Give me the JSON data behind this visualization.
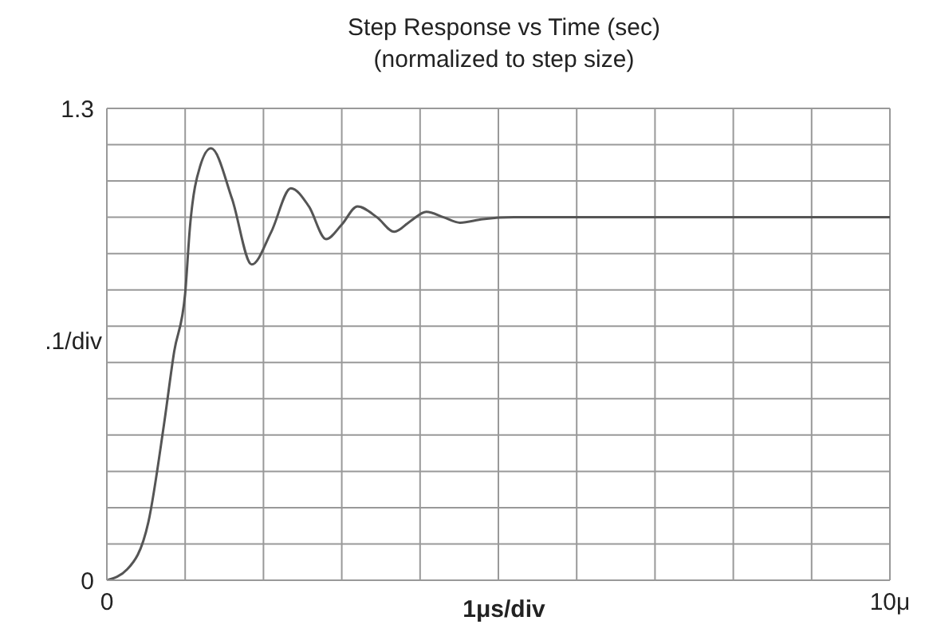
{
  "chart_data": {
    "type": "line",
    "title": "Step Response vs Time (sec)",
    "subtitle": "(normalized to step size)",
    "xlabel": "1μs/div",
    "ylabel": ".1/div",
    "x": [
      0,
      0.26,
      0.53,
      0.73,
      0.86,
      1.0,
      1.06,
      1.19,
      1.33,
      1.6,
      1.85,
      2.1,
      2.35,
      2.58,
      2.8,
      3.0,
      3.2,
      3.45,
      3.67,
      3.88,
      4.08,
      4.3,
      4.51,
      4.8,
      5.2,
      6,
      7,
      8,
      9,
      10
    ],
    "series": [
      {
        "color": "#555555",
        "values": [
          0,
          0.03,
          0.16,
          0.43,
          0.63,
          0.79,
          0.97,
          1.14,
          1.19,
          1.05,
          0.87,
          0.96,
          1.08,
          1.03,
          0.94,
          0.98,
          1.03,
          1.0,
          0.96,
          0.99,
          1.015,
          1.0,
          0.985,
          0.995,
          1.0,
          1.0,
          1.0,
          1.0,
          1.0,
          1.0
        ]
      }
    ],
    "xlim": [
      0,
      10
    ],
    "ylim": [
      0,
      1.3
    ],
    "xticks": [
      0,
      {
        "value": 1,
        "label": null
      },
      {
        "value": 2,
        "label": null
      },
      {
        "value": 3,
        "label": null
      },
      {
        "value": 4,
        "label": null
      },
      {
        "value": 5,
        "label": null
      },
      {
        "value": 6,
        "label": null
      },
      {
        "value": 7,
        "label": null
      },
      {
        "value": 8,
        "label": null
      },
      {
        "value": 9,
        "label": null
      },
      {
        "value": 10,
        "label": "10μ"
      }
    ],
    "yticks": [
      0,
      {
        "value": 0.1,
        "label": null
      },
      {
        "value": 0.2,
        "label": null
      },
      {
        "value": 0.3,
        "label": null
      },
      {
        "value": 0.4,
        "label": null
      },
      {
        "value": 0.5,
        "label": null
      },
      {
        "value": 0.6,
        "label": null
      },
      {
        "value": 0.7,
        "label": null
      },
      {
        "value": 0.8,
        "label": null
      },
      {
        "value": 0.9,
        "label": null
      },
      {
        "value": 1.0,
        "label": null
      },
      {
        "value": 1.1,
        "label": null
      },
      {
        "value": 1.2,
        "label": null
      },
      1.3
    ],
    "grid": true
  }
}
